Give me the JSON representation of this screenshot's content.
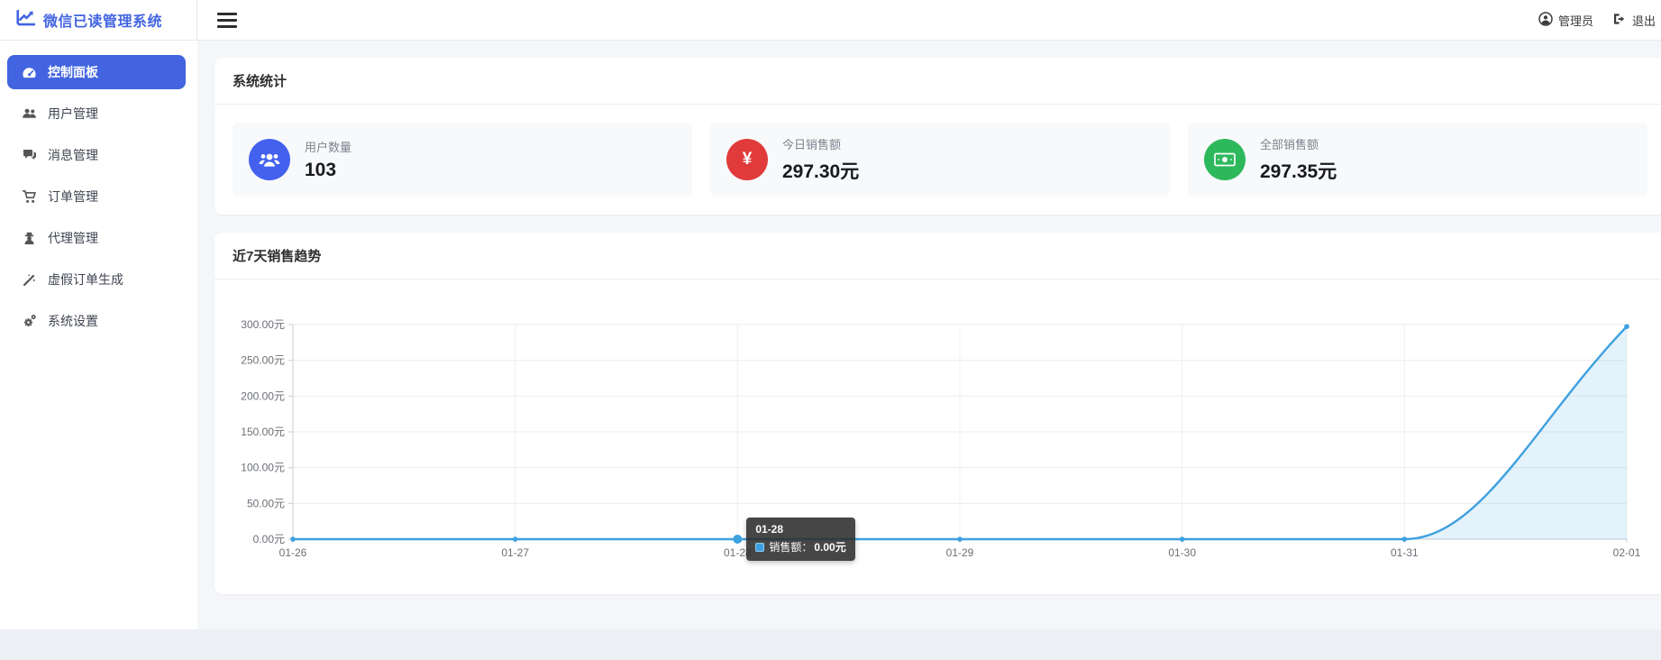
{
  "app": {
    "title": "微信已读管理系统"
  },
  "header": {
    "admin_label": "管理员",
    "logout_label": "退出"
  },
  "sidebar": {
    "items": [
      {
        "label": "控制面板",
        "icon": "dashboard-icon",
        "active": true
      },
      {
        "label": "用户管理",
        "icon": "users-icon",
        "active": false
      },
      {
        "label": "消息管理",
        "icon": "comments-icon",
        "active": false
      },
      {
        "label": "订单管理",
        "icon": "cart-icon",
        "active": false
      },
      {
        "label": "代理管理",
        "icon": "agent-icon",
        "active": false
      },
      {
        "label": "虚假订单生成",
        "icon": "magic-wand-icon",
        "active": false
      },
      {
        "label": "系统设置",
        "icon": "cogs-icon",
        "active": false
      }
    ]
  },
  "stats": {
    "section_title": "系统统计",
    "cards": [
      {
        "label": "用户数量",
        "value": "103",
        "icon": "users-icon",
        "color": "#4361ee"
      },
      {
        "label": "今日销售额",
        "value": "297.30元",
        "icon": "yen-icon",
        "color": "#e03a3a"
      },
      {
        "label": "全部销售额",
        "value": "297.35元",
        "icon": "money-bill-icon",
        "color": "#2eb85c"
      }
    ]
  },
  "chart_card": {
    "title": "近7天销售趋势"
  },
  "chart_data": {
    "type": "line",
    "title": "近7天销售趋势",
    "x": [
      "01-26",
      "01-27",
      "01-28",
      "01-29",
      "01-30",
      "01-31",
      "02-01"
    ],
    "series": [
      {
        "name": "销售额",
        "values": [
          0,
          0,
          0,
          0,
          0,
          0,
          297.3
        ]
      }
    ],
    "unit": "元",
    "ylim": [
      0,
      300
    ],
    "ytick_step": 50,
    "ytick_labels": [
      "0.00元",
      "50.00元",
      "100.00元",
      "150.00元",
      "200.00元",
      "250.00元",
      "300.00元"
    ],
    "xlabel": "",
    "ylabel": "",
    "grid": true,
    "smooth": true,
    "legend_position": "none",
    "line_color": "#3da0e0",
    "area_color": "rgba(61,160,224,0.14)",
    "tooltip": {
      "visible": true,
      "x_index": 2,
      "title": "01-28",
      "series_label": "销售额：",
      "value": "0.00元"
    }
  }
}
